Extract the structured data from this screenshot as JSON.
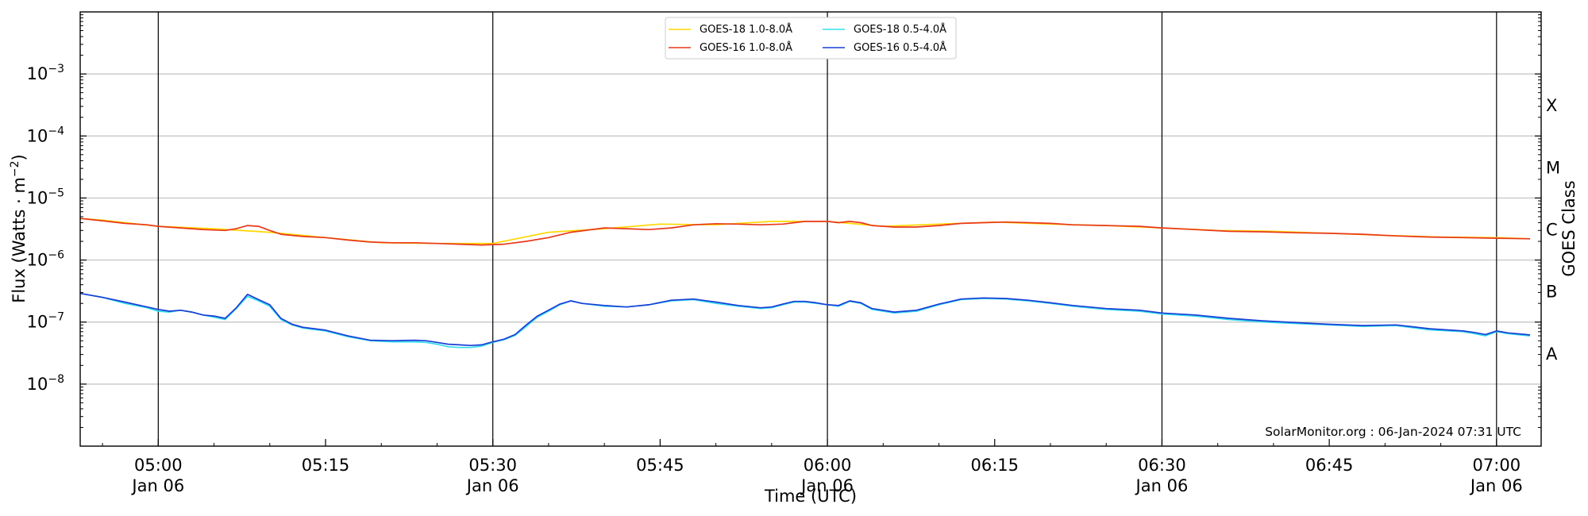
{
  "chart_data": {
    "type": "line",
    "xlabel": "Time (UTC)",
    "ylabel_main": "Flux (Watts · m",
    "ylabel_sup": "−2",
    "ylabel_close": ")",
    "y2label": "GOES Class",
    "credit": "SolarMonitor.org : 06-Jan-2024 07:31 UTC",
    "yscale": "log",
    "ylim": [
      1e-09,
      0.01
    ],
    "xlim": [
      "04:53",
      "07:04"
    ],
    "grid": "horizontal",
    "legend_position": "top-center",
    "y_ticks": [
      {
        "exp": -8,
        "value": 1e-08,
        "base": "10",
        "sup": "−8"
      },
      {
        "exp": -7,
        "value": 1e-07,
        "base": "10",
        "sup": "−7"
      },
      {
        "exp": -6,
        "value": 1e-06,
        "base": "10",
        "sup": "−6"
      },
      {
        "exp": -5,
        "value": 1e-05,
        "base": "10",
        "sup": "−5"
      },
      {
        "exp": -4,
        "value": 0.0001,
        "base": "10",
        "sup": "−4"
      },
      {
        "exp": -3,
        "value": 0.001,
        "base": "10",
        "sup": "−3"
      }
    ],
    "x_ticks": [
      {
        "time": "05:00",
        "label": "05:00",
        "sub": "Jan 06",
        "major": true
      },
      {
        "time": "05:15",
        "label": "05:15",
        "sub": "",
        "major": false
      },
      {
        "time": "05:30",
        "label": "05:30",
        "sub": "Jan 06",
        "major": true
      },
      {
        "time": "05:45",
        "label": "05:45",
        "sub": "",
        "major": false
      },
      {
        "time": "06:00",
        "label": "06:00",
        "sub": "Jan 06",
        "major": true
      },
      {
        "time": "06:15",
        "label": "06:15",
        "sub": "",
        "major": false
      },
      {
        "time": "06:30",
        "label": "06:30",
        "sub": "Jan 06",
        "major": true
      },
      {
        "time": "06:45",
        "label": "06:45",
        "sub": "",
        "major": false
      },
      {
        "time": "07:00",
        "label": "07:00",
        "sub": "Jan 06",
        "major": true
      }
    ],
    "classes": [
      {
        "label": "A",
        "flux": 1e-08
      },
      {
        "label": "B",
        "flux": 1e-07
      },
      {
        "label": "C",
        "flux": 1e-06
      },
      {
        "label": "M",
        "flux": 1e-05
      },
      {
        "label": "X",
        "flux": 0.0001
      }
    ],
    "series": [
      {
        "name": "GOES-18 1.0-8.0Å",
        "color": "#ffd700",
        "x": [
          "04:53",
          "04:55",
          "05:00",
          "05:05",
          "05:10",
          "05:15",
          "05:20",
          "05:25",
          "05:30",
          "05:35",
          "05:40",
          "05:45",
          "05:50",
          "05:55",
          "06:00",
          "06:05",
          "06:10",
          "06:15",
          "06:20",
          "06:25",
          "06:30",
          "06:35",
          "06:40",
          "06:45",
          "06:50",
          "06:55",
          "07:00",
          "07:03"
        ],
        "y": [
          4.7e-06,
          4.4e-06,
          3.5e-06,
          3.2e-06,
          2.8e-06,
          2.3e-06,
          1.9e-06,
          1.85e-06,
          1.85e-06,
          2.8e-06,
          3.2e-06,
          3.8e-06,
          3.7e-06,
          4.2e-06,
          4.2e-06,
          3.5e-06,
          3.8e-06,
          4.1e-06,
          3.8e-06,
          3.6e-06,
          3.3e-06,
          3e-06,
          2.9e-06,
          2.7e-06,
          2.5e-06,
          2.35e-06,
          2.3e-06,
          2.2e-06
        ]
      },
      {
        "name": "GOES-16 1.0-8.0Å",
        "color": "#e8391b",
        "x": [
          "04:53",
          "04:55",
          "04:57",
          "04:59",
          "05:00",
          "05:02",
          "05:04",
          "05:06",
          "05:07",
          "05:08",
          "05:09",
          "05:10",
          "05:11",
          "05:13",
          "05:15",
          "05:17",
          "05:19",
          "05:21",
          "05:23",
          "05:25",
          "05:27",
          "05:29",
          "05:31",
          "05:33",
          "05:35",
          "05:37",
          "05:40",
          "05:42",
          "05:44",
          "05:46",
          "05:48",
          "05:50",
          "05:52",
          "05:54",
          "05:56",
          "05:58",
          "06:00",
          "06:01",
          "06:02",
          "06:03",
          "06:04",
          "06:06",
          "06:08",
          "06:10",
          "06:12",
          "06:14",
          "06:16",
          "06:18",
          "06:20",
          "06:22",
          "06:25",
          "06:28",
          "06:30",
          "06:33",
          "06:36",
          "06:39",
          "06:42",
          "06:45",
          "06:48",
          "06:51",
          "06:54",
          "06:57",
          "07:00",
          "07:03"
        ],
        "y": [
          4.7e-06,
          4.3e-06,
          3.9e-06,
          3.7e-06,
          3.5e-06,
          3.3e-06,
          3.1e-06,
          3e-06,
          3.2e-06,
          3.6e-06,
          3.5e-06,
          3e-06,
          2.6e-06,
          2.4e-06,
          2.3e-06,
          2.1e-06,
          1.95e-06,
          1.9e-06,
          1.9e-06,
          1.85e-06,
          1.8e-06,
          1.75e-06,
          1.8e-06,
          2e-06,
          2.3e-06,
          2.8e-06,
          3.3e-06,
          3.2e-06,
          3.1e-06,
          3.3e-06,
          3.7e-06,
          3.85e-06,
          3.8e-06,
          3.7e-06,
          3.8e-06,
          4.2e-06,
          4.2e-06,
          4e-06,
          4.2e-06,
          4e-06,
          3.6e-06,
          3.4e-06,
          3.4e-06,
          3.6e-06,
          3.9e-06,
          4e-06,
          4.1e-06,
          4e-06,
          3.9e-06,
          3.7e-06,
          3.6e-06,
          3.5e-06,
          3.3e-06,
          3.1e-06,
          2.9e-06,
          2.85e-06,
          2.75e-06,
          2.7e-06,
          2.6e-06,
          2.45e-06,
          2.35e-06,
          2.3e-06,
          2.25e-06,
          2.2e-06
        ]
      },
      {
        "name": "GOES-18 0.5-4.0Å",
        "color": "#33ddee",
        "x": [
          "04:53",
          "04:55",
          "04:57",
          "04:59",
          "05:00",
          "05:01",
          "05:02",
          "05:03",
          "05:04",
          "05:05",
          "05:06",
          "05:07",
          "05:08",
          "05:09",
          "05:10",
          "05:11",
          "05:12",
          "05:13",
          "05:15",
          "05:17",
          "05:19",
          "05:21",
          "05:23",
          "05:24",
          "05:25",
          "05:26",
          "05:27",
          "05:28",
          "05:29",
          "05:30",
          "05:31",
          "05:32",
          "05:33",
          "05:34",
          "05:35",
          "05:36",
          "05:37",
          "05:38",
          "05:40",
          "05:42",
          "05:44",
          "05:46",
          "05:48",
          "05:50",
          "05:52",
          "05:54",
          "05:55",
          "05:56",
          "05:57",
          "05:58",
          "05:59",
          "06:00",
          "06:01",
          "06:02",
          "06:03",
          "06:04",
          "06:06",
          "06:08",
          "06:10",
          "06:12",
          "06:14",
          "06:16",
          "06:18",
          "06:20",
          "06:22",
          "06:25",
          "06:28",
          "06:30",
          "06:33",
          "06:36",
          "06:39",
          "06:42",
          "06:45",
          "06:48",
          "06:51",
          "06:54",
          "06:57",
          "06:58",
          "06:59",
          "07:00",
          "07:01",
          "07:03"
        ],
        "y": [
          2.9e-07,
          2.5e-07,
          2e-07,
          1.7e-07,
          1.5e-07,
          1.45e-07,
          1.55e-07,
          1.45e-07,
          1.3e-07,
          1.2e-07,
          1.1e-07,
          1.65e-07,
          2.6e-07,
          2.2e-07,
          1.8e-07,
          1.1e-07,
          9e-08,
          8e-08,
          7.2e-08,
          5.8e-08,
          5e-08,
          4.8e-08,
          4.8e-08,
          4.7e-08,
          4.4e-08,
          4e-08,
          3.9e-08,
          3.9e-08,
          4.1e-08,
          4.7e-08,
          5.2e-08,
          6.1e-08,
          8.5e-08,
          1.2e-07,
          1.5e-07,
          1.9e-07,
          2.2e-07,
          2e-07,
          1.8e-07,
          1.75e-07,
          1.9e-07,
          2.2e-07,
          2.3e-07,
          2e-07,
          1.8e-07,
          1.65e-07,
          1.7e-07,
          1.9e-07,
          2.1e-07,
          2.1e-07,
          2e-07,
          1.9e-07,
          1.8e-07,
          2.15e-07,
          2e-07,
          1.6e-07,
          1.4e-07,
          1.5e-07,
          1.9e-07,
          2.3e-07,
          2.4e-07,
          2.35e-07,
          2.2e-07,
          2e-07,
          1.8e-07,
          1.6e-07,
          1.5e-07,
          1.35e-07,
          1.25e-07,
          1.1e-07,
          1e-07,
          9.5e-08,
          9e-08,
          8.5e-08,
          8.8e-08,
          7.5e-08,
          7e-08,
          6.5e-08,
          6e-08,
          7e-08,
          6.5e-08,
          6e-08
        ]
      },
      {
        "name": "GOES-16 0.5-4.0Å",
        "color": "#1a3fd6",
        "x": [
          "04:53",
          "04:55",
          "04:57",
          "04:59",
          "05:00",
          "05:01",
          "05:02",
          "05:03",
          "05:04",
          "05:05",
          "05:06",
          "05:07",
          "05:08",
          "05:09",
          "05:10",
          "05:11",
          "05:12",
          "05:13",
          "05:15",
          "05:17",
          "05:19",
          "05:21",
          "05:23",
          "05:24",
          "05:25",
          "05:26",
          "05:27",
          "05:28",
          "05:29",
          "05:30",
          "05:31",
          "05:32",
          "05:33",
          "05:34",
          "05:35",
          "05:36",
          "05:37",
          "05:38",
          "05:40",
          "05:42",
          "05:44",
          "05:46",
          "05:48",
          "05:50",
          "05:52",
          "05:54",
          "05:55",
          "05:56",
          "05:57",
          "05:58",
          "05:59",
          "06:00",
          "06:01",
          "06:02",
          "06:03",
          "06:04",
          "06:06",
          "06:08",
          "06:10",
          "06:12",
          "06:14",
          "06:16",
          "06:18",
          "06:20",
          "06:22",
          "06:25",
          "06:28",
          "06:30",
          "06:33",
          "06:36",
          "06:39",
          "06:42",
          "06:45",
          "06:48",
          "06:51",
          "06:54",
          "06:57",
          "06:58",
          "06:59",
          "07:00",
          "07:01",
          "07:03"
        ],
        "y": [
          2.9e-07,
          2.5e-07,
          2.1e-07,
          1.75e-07,
          1.6e-07,
          1.5e-07,
          1.55e-07,
          1.45e-07,
          1.3e-07,
          1.25e-07,
          1.15e-07,
          1.7e-07,
          2.8e-07,
          2.3e-07,
          1.9e-07,
          1.15e-07,
          9.2e-08,
          8.2e-08,
          7.4e-08,
          6e-08,
          5.1e-08,
          5e-08,
          5.1e-08,
          5e-08,
          4.7e-08,
          4.4e-08,
          4.3e-08,
          4.2e-08,
          4.3e-08,
          4.8e-08,
          5.3e-08,
          6.3e-08,
          9e-08,
          1.25e-07,
          1.55e-07,
          1.95e-07,
          2.2e-07,
          2e-07,
          1.85e-07,
          1.75e-07,
          1.9e-07,
          2.25e-07,
          2.35e-07,
          2.1e-07,
          1.85e-07,
          1.7e-07,
          1.75e-07,
          1.95e-07,
          2.15e-07,
          2.15e-07,
          2.05e-07,
          1.9e-07,
          1.85e-07,
          2.2e-07,
          2.05e-07,
          1.65e-07,
          1.45e-07,
          1.55e-07,
          1.95e-07,
          2.35e-07,
          2.45e-07,
          2.4e-07,
          2.25e-07,
          2.05e-07,
          1.85e-07,
          1.65e-07,
          1.55e-07,
          1.4e-07,
          1.3e-07,
          1.15e-07,
          1.05e-07,
          9.8e-08,
          9.2e-08,
          8.8e-08,
          9e-08,
          7.8e-08,
          7.2e-08,
          6.8e-08,
          6.3e-08,
          7.2e-08,
          6.7e-08,
          6.2e-08
        ]
      }
    ]
  }
}
